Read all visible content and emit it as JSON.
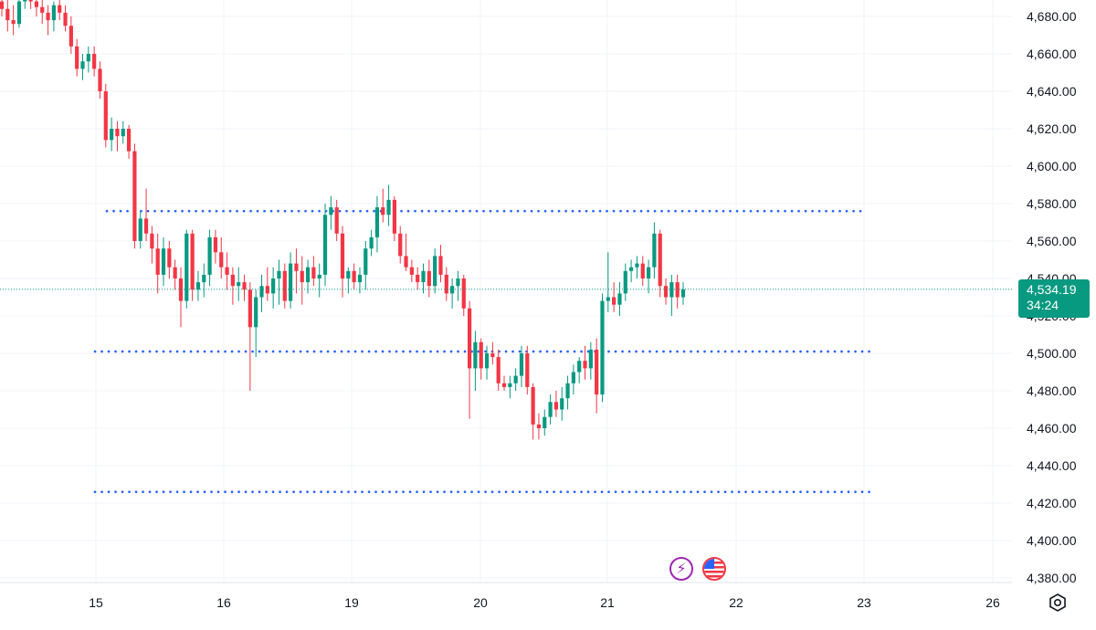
{
  "chart_data": {
    "type": "candlestick",
    "x_tick_labels": [
      "15",
      "16",
      "19",
      "20",
      "21",
      "22",
      "23",
      "26"
    ],
    "y_tick_labels": [
      "4,680.00",
      "4,660.00",
      "4,640.00",
      "4,620.00",
      "4,600.00",
      "4,580.00",
      "4,560.00",
      "4,540.00",
      "4,520.00",
      "4,500.00",
      "4,480.00",
      "4,460.00",
      "4,440.00",
      "4,420.00",
      "4,400.00",
      "4,380.00"
    ],
    "y_ticks": [
      4680,
      4660,
      4640,
      4620,
      4600,
      4580,
      4560,
      4540,
      4520,
      4500,
      4480,
      4460,
      4440,
      4420,
      4400,
      4380
    ],
    "ylim": [
      4373,
      4686
    ],
    "last_price": 4534.19,
    "last_price_label": "4,534.19",
    "countdown": "34:24",
    "horizontal_levels": [
      4576,
      4501,
      4426
    ],
    "colors": {
      "up": "#089981",
      "down": "#f23645",
      "level_line": "#2962ff",
      "last_price": "#089981"
    },
    "grid": true,
    "candles": [
      [
        4688,
        4692,
        4680,
        4684
      ],
      [
        4684,
        4690,
        4672,
        4678
      ],
      [
        4678,
        4686,
        4670,
        4676
      ],
      [
        4676,
        4690,
        4674,
        4688
      ],
      [
        4688,
        4692,
        4684,
        4690
      ],
      [
        4690,
        4693,
        4684,
        4688
      ],
      [
        4688,
        4690,
        4680,
        4685
      ],
      [
        4685,
        4690,
        4676,
        4682
      ],
      [
        4682,
        4686,
        4670,
        4678
      ],
      [
        4678,
        4688,
        4672,
        4686
      ],
      [
        4686,
        4690,
        4678,
        4682
      ],
      [
        4682,
        4686,
        4672,
        4675
      ],
      [
        4675,
        4680,
        4660,
        4664
      ],
      [
        4664,
        4668,
        4648,
        4652
      ],
      [
        4652,
        4660,
        4646,
        4656
      ],
      [
        4656,
        4664,
        4650,
        4660
      ],
      [
        4660,
        4664,
        4648,
        4652
      ],
      [
        4652,
        4656,
        4636,
        4640
      ],
      [
        4640,
        4644,
        4610,
        4614
      ],
      [
        4614,
        4626,
        4608,
        4620
      ],
      [
        4620,
        4624,
        4608,
        4616
      ],
      [
        4616,
        4624,
        4612,
        4620
      ],
      [
        4620,
        4622,
        4604,
        4608
      ],
      [
        4608,
        4612,
        4556,
        4560
      ],
      [
        4560,
        4576,
        4556,
        4572
      ],
      [
        4572,
        4588,
        4560,
        4564
      ],
      [
        4564,
        4568,
        4548,
        4556
      ],
      [
        4556,
        4564,
        4532,
        4542
      ],
      [
        4542,
        4562,
        4536,
        4556
      ],
      [
        4556,
        4560,
        4540,
        4546
      ],
      [
        4546,
        4550,
        4534,
        4540
      ],
      [
        4540,
        4546,
        4514,
        4528
      ],
      [
        4528,
        4566,
        4524,
        4564
      ],
      [
        4564,
        4566,
        4528,
        4534
      ],
      [
        4534,
        4544,
        4528,
        4538
      ],
      [
        4538,
        4548,
        4530,
        4542
      ],
      [
        4542,
        4566,
        4536,
        4562
      ],
      [
        4562,
        4566,
        4548,
        4554
      ],
      [
        4554,
        4562,
        4540,
        4546
      ],
      [
        4546,
        4554,
        4534,
        4542
      ],
      [
        4542,
        4546,
        4526,
        4536
      ],
      [
        4536,
        4546,
        4528,
        4538
      ],
      [
        4538,
        4542,
        4528,
        4534
      ],
      [
        4534,
        4538,
        4480,
        4514
      ],
      [
        4514,
        4534,
        4498,
        4530
      ],
      [
        4530,
        4542,
        4522,
        4536
      ],
      [
        4536,
        4546,
        4528,
        4532
      ],
      [
        4532,
        4546,
        4524,
        4540
      ],
      [
        4540,
        4550,
        4526,
        4544
      ],
      [
        4544,
        4548,
        4524,
        4528
      ],
      [
        4528,
        4554,
        4524,
        4548
      ],
      [
        4548,
        4556,
        4532,
        4544
      ],
      [
        4544,
        4552,
        4526,
        4538
      ],
      [
        4538,
        4550,
        4532,
        4546
      ],
      [
        4546,
        4552,
        4536,
        4540
      ],
      [
        4540,
        4548,
        4530,
        4542
      ],
      [
        4542,
        4580,
        4536,
        4574
      ],
      [
        4574,
        4584,
        4566,
        4578
      ],
      [
        4578,
        4582,
        4560,
        4564
      ],
      [
        4564,
        4568,
        4530,
        4540
      ],
      [
        4540,
        4546,
        4532,
        4544
      ],
      [
        4544,
        4548,
        4534,
        4538
      ],
      [
        4538,
        4546,
        4532,
        4542
      ],
      [
        4542,
        4560,
        4534,
        4556
      ],
      [
        4556,
        4566,
        4552,
        4562
      ],
      [
        4562,
        4584,
        4554,
        4578
      ],
      [
        4578,
        4588,
        4570,
        4574
      ],
      [
        4574,
        4590,
        4568,
        4582
      ],
      [
        4582,
        4584,
        4560,
        4564
      ],
      [
        4564,
        4568,
        4548,
        4552
      ],
      [
        4552,
        4564,
        4544,
        4546
      ],
      [
        4546,
        4550,
        4538,
        4542
      ],
      [
        4542,
        4546,
        4534,
        4538
      ],
      [
        4538,
        4548,
        4532,
        4544
      ],
      [
        4544,
        4550,
        4530,
        4536
      ],
      [
        4536,
        4556,
        4532,
        4552
      ],
      [
        4552,
        4558,
        4538,
        4542
      ],
      [
        4542,
        4546,
        4528,
        4532
      ],
      [
        4532,
        4540,
        4524,
        4536
      ],
      [
        4536,
        4544,
        4528,
        4540
      ],
      [
        4540,
        4542,
        4520,
        4524
      ],
      [
        4524,
        4528,
        4465,
        4492
      ],
      [
        4492,
        4512,
        4480,
        4506
      ],
      [
        4506,
        4508,
        4486,
        4492
      ],
      [
        4492,
        4504,
        4486,
        4500
      ],
      [
        4500,
        4506,
        4494,
        4498
      ],
      [
        4498,
        4502,
        4480,
        4484
      ],
      [
        4484,
        4488,
        4480,
        4482
      ],
      [
        4482,
        4488,
        4476,
        4484
      ],
      [
        4484,
        4492,
        4480,
        4488
      ],
      [
        4488,
        4504,
        4482,
        4500
      ],
      [
        4500,
        4504,
        4478,
        4482
      ],
      [
        4482,
        4484,
        4454,
        4462
      ],
      [
        4462,
        4468,
        4454,
        4460
      ],
      [
        4460,
        4470,
        4456,
        4466
      ],
      [
        4466,
        4478,
        4462,
        4474
      ],
      [
        4474,
        4480,
        4466,
        4470
      ],
      [
        4470,
        4482,
        4464,
        4476
      ],
      [
        4476,
        4488,
        4470,
        4484
      ],
      [
        4484,
        4494,
        4478,
        4490
      ],
      [
        4490,
        4498,
        4484,
        4496
      ],
      [
        4496,
        4504,
        4486,
        4492
      ],
      [
        4492,
        4506,
        4486,
        4502
      ],
      [
        4502,
        4508,
        4468,
        4478
      ],
      [
        4478,
        4532,
        4474,
        4528
      ],
      [
        4528,
        4554,
        4522,
        4530
      ],
      [
        4530,
        4538,
        4522,
        4526
      ],
      [
        4526,
        4538,
        4520,
        4532
      ],
      [
        4532,
        4548,
        4528,
        4544
      ],
      [
        4544,
        4550,
        4538,
        4546
      ],
      [
        4546,
        4552,
        4540,
        4548
      ],
      [
        4548,
        4552,
        4536,
        4540
      ],
      [
        4540,
        4550,
        4532,
        4546
      ],
      [
        4546,
        4570,
        4540,
        4564
      ],
      [
        4564,
        4566,
        4530,
        4536
      ],
      [
        4536,
        4540,
        4526,
        4530
      ],
      [
        4530,
        4542,
        4520,
        4538
      ],
      [
        4538,
        4542,
        4524,
        4530
      ],
      [
        4530,
        4538,
        4526,
        4534.19
      ]
    ]
  },
  "icons": {
    "event_flash": "lightning-icon",
    "event_us": "us-flag-icon",
    "settings": "settings-icon"
  },
  "badge_text_glyph": "⚡"
}
